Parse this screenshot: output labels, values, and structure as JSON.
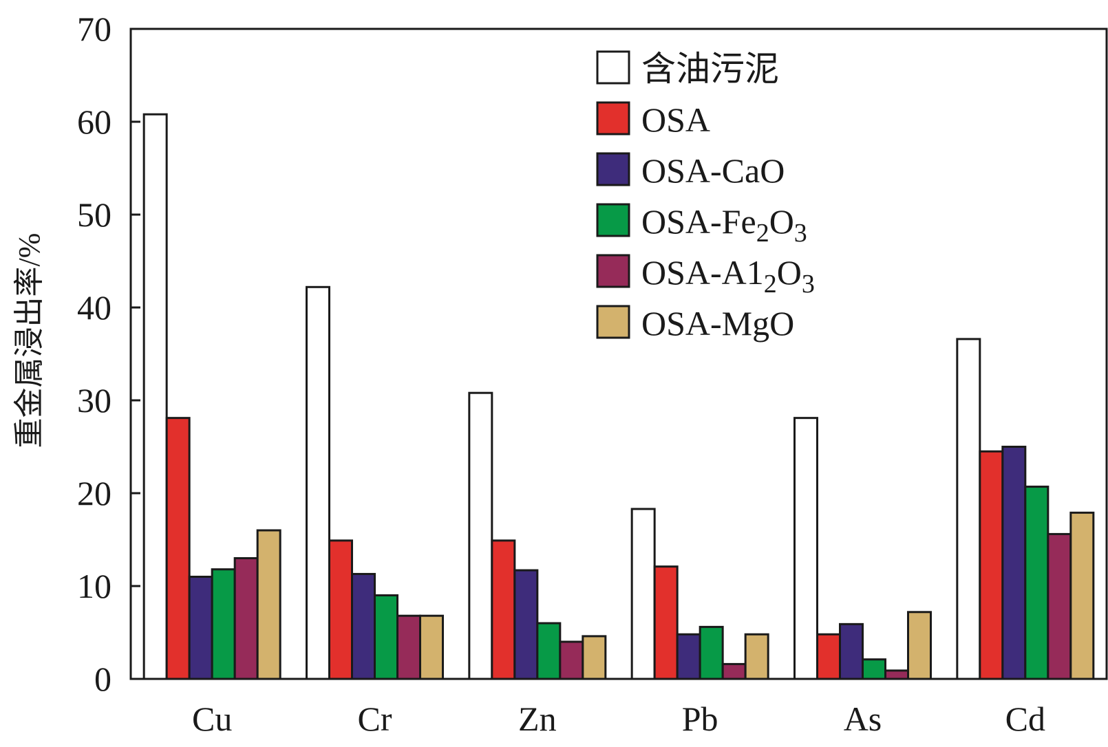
{
  "chart_data": {
    "type": "bar",
    "title": "",
    "xlabel": "",
    "ylabel": "重金属浸出率/%",
    "ylim": [
      0,
      70
    ],
    "yticks": [
      0,
      10,
      20,
      30,
      40,
      50,
      60,
      70
    ],
    "grid": false,
    "legend_position": "top-right",
    "categories": [
      "Cu",
      "Cr",
      "Zn",
      "Pb",
      "As",
      "Cd"
    ],
    "series": [
      {
        "name": "含油污泥",
        "color": "#ffffff",
        "values": [
          60.8,
          42.2,
          30.8,
          18.3,
          28.1,
          36.6
        ]
      },
      {
        "name": "OSA",
        "name_sub": "",
        "name_post": "",
        "color": "#e2302c",
        "values": [
          28.1,
          14.9,
          14.9,
          12.1,
          4.8,
          24.5
        ]
      },
      {
        "name": "OSA-CaO",
        "name_sub": "",
        "name_post": "",
        "color": "#3e2c7b",
        "values": [
          11.0,
          11.3,
          11.7,
          4.8,
          5.9,
          25.0
        ]
      },
      {
        "name": "OSA-Fe",
        "name_sub": "2",
        "name_post": "O3",
        "color": "#079a47",
        "values": [
          11.8,
          9.0,
          6.0,
          5.6,
          2.1,
          20.7
        ]
      },
      {
        "name": "OSA-A1",
        "name_sub": "2",
        "name_post": "O3",
        "color": "#962b59",
        "values": [
          13.0,
          6.8,
          4.0,
          1.6,
          0.9,
          15.6
        ]
      },
      {
        "name": "OSA-MgO",
        "name_sub": "",
        "name_post": "",
        "color": "#d3b26d",
        "values": [
          16.0,
          6.8,
          4.6,
          4.8,
          7.2,
          17.9
        ]
      }
    ]
  }
}
